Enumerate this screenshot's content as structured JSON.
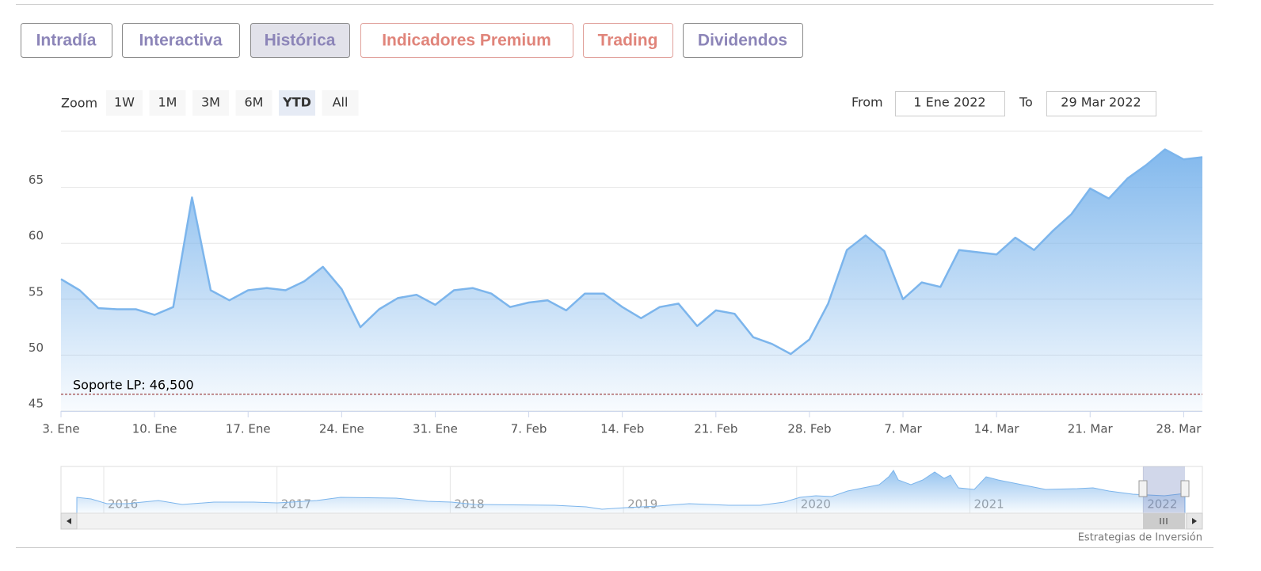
{
  "tabs": [
    "Intradía",
    "Interactiva",
    "Histórica",
    "Indicadores Premium",
    "Trading",
    "Dividendos"
  ],
  "zoom": {
    "label": "Zoom",
    "buttons": [
      "1W",
      "1M",
      "3M",
      "6M",
      "YTD",
      "All"
    ],
    "selected": "YTD"
  },
  "range": {
    "from_label": "From",
    "from": "1 Ene 2022",
    "to_label": "To",
    "to": "29 Mar 2022"
  },
  "footer": "Estrategias de Inversión",
  "chart_data": {
    "type": "area",
    "x": [
      "2022-01-03",
      "2022-01-04",
      "2022-01-05",
      "2022-01-06",
      "2022-01-07",
      "2022-01-10",
      "2022-01-11",
      "2022-01-12",
      "2022-01-13",
      "2022-01-14",
      "2022-01-17",
      "2022-01-18",
      "2022-01-19",
      "2022-01-20",
      "2022-01-21",
      "2022-01-24",
      "2022-01-25",
      "2022-01-26",
      "2022-01-27",
      "2022-01-28",
      "2022-01-31",
      "2022-02-01",
      "2022-02-02",
      "2022-02-03",
      "2022-02-04",
      "2022-02-07",
      "2022-02-08",
      "2022-02-09",
      "2022-02-10",
      "2022-02-11",
      "2022-02-14",
      "2022-02-15",
      "2022-02-16",
      "2022-02-17",
      "2022-02-18",
      "2022-02-21",
      "2022-02-22",
      "2022-02-23",
      "2022-02-24",
      "2022-02-25",
      "2022-02-28",
      "2022-03-01",
      "2022-03-02",
      "2022-03-03",
      "2022-03-04",
      "2022-03-07",
      "2022-03-08",
      "2022-03-09",
      "2022-03-10",
      "2022-03-11",
      "2022-03-14",
      "2022-03-15",
      "2022-03-16",
      "2022-03-17",
      "2022-03-18",
      "2022-03-21",
      "2022-03-22",
      "2022-03-23",
      "2022-03-24",
      "2022-03-25",
      "2022-03-28",
      "2022-03-29"
    ],
    "values": [
      56.8,
      55.8,
      54.2,
      54.1,
      54.1,
      53.6,
      54.3,
      64.1,
      55.8,
      54.9,
      55.8,
      56.0,
      55.8,
      56.6,
      57.9,
      55.9,
      52.5,
      54.1,
      55.1,
      55.4,
      54.5,
      55.8,
      56.0,
      55.5,
      54.3,
      54.7,
      54.9,
      54.0,
      55.5,
      55.5,
      54.3,
      53.3,
      54.3,
      54.6,
      52.6,
      54.0,
      53.7,
      51.6,
      51.0,
      50.1,
      51.4,
      54.6,
      59.4,
      60.7,
      59.3,
      55.0,
      56.5,
      56.1,
      59.4,
      59.2,
      59.0,
      60.5,
      59.4,
      61.1,
      62.6,
      64.9,
      64.0,
      65.8,
      67.0,
      68.4,
      67.5,
      67.7
    ],
    "color": "#7cb5ec",
    "ylim": [
      45,
      70
    ],
    "yticks": [
      45,
      50,
      55,
      60,
      65
    ],
    "xticks": [
      {
        "value": "2022-01-03",
        "label": "3. Ene"
      },
      {
        "value": "2022-01-10",
        "label": "10. Ene"
      },
      {
        "value": "2022-01-17",
        "label": "17. Ene"
      },
      {
        "value": "2022-01-24",
        "label": "24. Ene"
      },
      {
        "value": "2022-01-31",
        "label": "31. Ene"
      },
      {
        "value": "2022-02-07",
        "label": "7. Feb"
      },
      {
        "value": "2022-02-14",
        "label": "14. Feb"
      },
      {
        "value": "2022-02-21",
        "label": "21. Feb"
      },
      {
        "value": "2022-02-28",
        "label": "28. Feb"
      },
      {
        "value": "2022-03-07",
        "label": "7. Mar"
      },
      {
        "value": "2022-03-14",
        "label": "14. Mar"
      },
      {
        "value": "2022-03-21",
        "label": "21. Mar"
      },
      {
        "value": "2022-03-28",
        "label": "28. Mar"
      }
    ],
    "grid": true,
    "plot_line": {
      "value": 46.5,
      "label": "Soporte LP: 46,500",
      "color": "#8b1a1a"
    },
    "navigator_labels": [
      "2016",
      "2017",
      "2018",
      "2019",
      "2020",
      "2021",
      "2022"
    ]
  }
}
